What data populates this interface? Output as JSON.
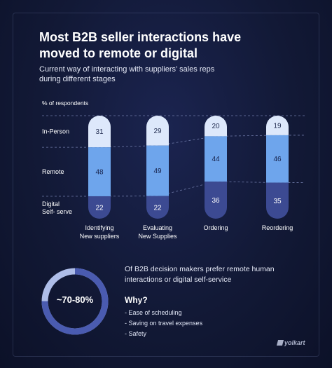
{
  "title": "Most B2B seller interactions have moved to remote or digital",
  "subtitle": "Current way of interacting with suppliers’ sales reps during different stages",
  "chart_data": {
    "type": "bar",
    "stacked": true,
    "ylabel": "% of respondents",
    "categories": [
      [
        "Identifying",
        "New suppliers"
      ],
      [
        "Evaluating",
        "New Supplies"
      ],
      [
        "Ordering"
      ],
      [
        "Reordering"
      ]
    ],
    "series": [
      {
        "name": "In-Person",
        "values": [
          31,
          29,
          20,
          19
        ],
        "color": "#dde8fb",
        "text_color": "#1f2a4e"
      },
      {
        "name": "Remote",
        "values": [
          48,
          49,
          44,
          46
        ],
        "color": "#6ea5ec",
        "text_color": "#16214a"
      },
      {
        "name": "Digital Self- serve",
        "values": [
          22,
          22,
          36,
          35
        ],
        "color": "#3c4a92",
        "text_color": "#ffffff"
      }
    ],
    "legend_placement": "left",
    "grid": false
  },
  "highlight": {
    "value": "~70-80%",
    "text": "Of B2B decision makers prefer remote human interactions or digital self-service",
    "why_title": "Why?",
    "reasons": [
      "- Ease of scheduling",
      "- Saving on travel expenses",
      "- Safety"
    ],
    "ring_fill": 0.75,
    "ring_color": "#4a5bb0",
    "ring_track_color": "#aebde8"
  },
  "brand": "yolkart"
}
